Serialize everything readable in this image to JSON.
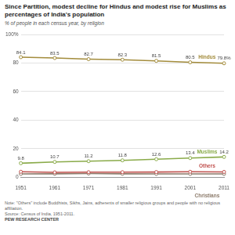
{
  "chart_data": {
    "type": "line",
    "title": "Since Partition, modest decline for Hindus and modest rise for Muslims as percentages of India's population",
    "subtitle": "% of people in each census year, by religion",
    "note": "Note: \"Others\" include Buddhists, Sikhs, Jains, adherents of smaller religious groups and people with no religious affiliation.",
    "source": "Source: Census of India, 1951-2011.",
    "credit": "PEW RESEARCH CENTER",
    "categories": [
      "1951",
      "1961",
      "1971",
      "1981",
      "1991",
      "2001",
      "2011"
    ],
    "series": [
      {
        "name": "Hindus",
        "color": "#a38c3c",
        "marker": "circle",
        "line_style": "solid",
        "data_labels": true,
        "values": [
          84.1,
          83.5,
          82.7,
          82.3,
          81.5,
          80.5,
          79.8
        ],
        "value_labels": [
          "84.1",
          "83.5",
          "82.7",
          "82.3",
          "81.5",
          "80.5",
          "79.8%"
        ]
      },
      {
        "name": "Muslims",
        "color": "#8aab4a",
        "marker": "circle",
        "line_style": "solid",
        "data_labels": true,
        "values": [
          9.8,
          10.7,
          11.2,
          11.8,
          12.6,
          13.4,
          14.2
        ]
      },
      {
        "name": "Others",
        "color": "#c0504d",
        "marker": "circle",
        "line_style": "solid",
        "data_labels": false,
        "values": [
          3.8,
          3.4,
          3.5,
          3.5,
          3.6,
          3.8,
          3.7
        ]
      },
      {
        "name": "Christians",
        "color": "#8c7b6b",
        "marker": "circle",
        "line_style": "solid",
        "data_labels": false,
        "values": [
          2.3,
          2.4,
          2.6,
          2.4,
          2.3,
          2.3,
          2.3
        ]
      }
    ],
    "ylim": [
      0,
      100
    ],
    "yticks": [
      0,
      20,
      40,
      60,
      80,
      {
        "value": 100,
        "label": "100%"
      }
    ],
    "grid": true
  }
}
